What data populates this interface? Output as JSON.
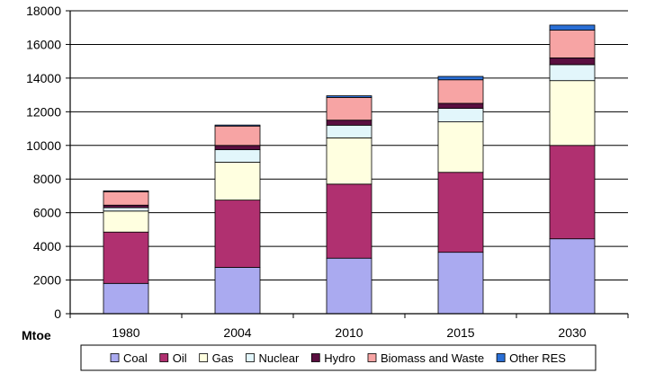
{
  "chart_data": {
    "type": "bar",
    "stacked": true,
    "unit_label": "Mtoe",
    "categories": [
      "1980",
      "2004",
      "2010",
      "2015",
      "2030"
    ],
    "series": [
      {
        "name": "Coal",
        "color": "#aaaaf0",
        "values": [
          1800,
          2750,
          3300,
          3650,
          4450
        ]
      },
      {
        "name": "Oil",
        "color": "#b03070",
        "values": [
          3050,
          4000,
          4400,
          4750,
          5550
        ]
      },
      {
        "name": "Gas",
        "color": "#ffffe0",
        "values": [
          1250,
          2250,
          2750,
          3000,
          3850
        ]
      },
      {
        "name": "Nuclear",
        "color": "#e2f6fb",
        "values": [
          200,
          750,
          750,
          800,
          950
        ]
      },
      {
        "name": "Hydro",
        "color": "#5a0f40",
        "values": [
          150,
          250,
          300,
          300,
          400
        ]
      },
      {
        "name": "Biomass and Waste",
        "color": "#f7a4a4",
        "values": [
          800,
          1150,
          1350,
          1400,
          1650
        ]
      },
      {
        "name": "Other RES",
        "color": "#2a6fd6",
        "values": [
          50,
          60,
          100,
          200,
          300
        ]
      }
    ],
    "ylim": [
      0,
      18000
    ],
    "yticks": [
      0,
      2000,
      4000,
      6000,
      8000,
      10000,
      12000,
      14000,
      16000,
      18000
    ],
    "grid": true,
    "legend_position": "bottom"
  }
}
